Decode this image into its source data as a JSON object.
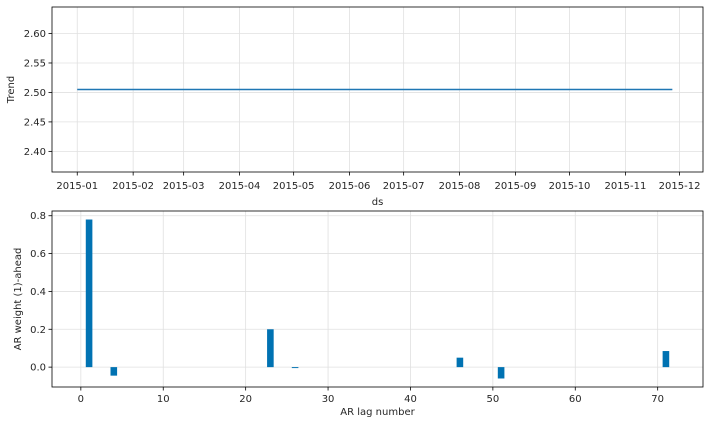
{
  "colors": {
    "trend_line": "#1f77b4",
    "bars": "#0072B2",
    "grid": "#e0e0e0",
    "axis": "#000000"
  },
  "chart_data": [
    {
      "type": "line",
      "ylabel": "Trend",
      "xlabel": "ds",
      "ylim": [
        2.365,
        2.645
      ],
      "xlim": [
        "2014-12-18",
        "2015-12-14"
      ],
      "grid": true,
      "x_ticks": [
        {
          "date": "2015-01-01",
          "label": "2015-01"
        },
        {
          "date": "2015-02-01",
          "label": "2015-02"
        },
        {
          "date": "2015-03-01",
          "label": "2015-03"
        },
        {
          "date": "2015-04-01",
          "label": "2015-04"
        },
        {
          "date": "2015-05-01",
          "label": "2015-05"
        },
        {
          "date": "2015-06-01",
          "label": "2015-06"
        },
        {
          "date": "2015-07-01",
          "label": "2015-07"
        },
        {
          "date": "2015-08-01",
          "label": "2015-08"
        },
        {
          "date": "2015-09-01",
          "label": "2015-09"
        },
        {
          "date": "2015-10-01",
          "label": "2015-10"
        },
        {
          "date": "2015-11-01",
          "label": "2015-11"
        },
        {
          "date": "2015-12-01",
          "label": "2015-12"
        }
      ],
      "y_ticks": [
        {
          "value": 2.4,
          "label": "2.40"
        },
        {
          "value": 2.45,
          "label": "2.45"
        },
        {
          "value": 2.5,
          "label": "2.50"
        },
        {
          "value": 2.55,
          "label": "2.55"
        },
        {
          "value": 2.6,
          "label": "2.60"
        }
      ],
      "series": [
        {
          "x": [
            "2015-01-01",
            "2015-11-27"
          ],
          "y": [
            2.505,
            2.505
          ]
        }
      ]
    },
    {
      "type": "bar",
      "ylabel": "AR weight (1)-ahead",
      "xlabel": "AR lag number",
      "xlim": [
        -3.5,
        75.5
      ],
      "ylim": [
        -0.105,
        0.825
      ],
      "grid": true,
      "x_ticks": [
        {
          "value": 0,
          "label": "0"
        },
        {
          "value": 10,
          "label": "10"
        },
        {
          "value": 20,
          "label": "20"
        },
        {
          "value": 30,
          "label": "30"
        },
        {
          "value": 40,
          "label": "40"
        },
        {
          "value": 50,
          "label": "50"
        },
        {
          "value": 60,
          "label": "60"
        },
        {
          "value": 70,
          "label": "70"
        }
      ],
      "y_ticks": [
        {
          "value": 0.0,
          "label": "0.0"
        },
        {
          "value": 0.2,
          "label": "0.2"
        },
        {
          "value": 0.4,
          "label": "0.4"
        },
        {
          "value": 0.6,
          "label": "0.6"
        },
        {
          "value": 0.8,
          "label": "0.8"
        }
      ],
      "x": [
        1,
        4,
        23,
        26,
        46,
        51,
        71
      ],
      "values": [
        0.78,
        -0.045,
        0.2,
        -0.005,
        0.05,
        -0.06,
        0.085
      ]
    }
  ]
}
